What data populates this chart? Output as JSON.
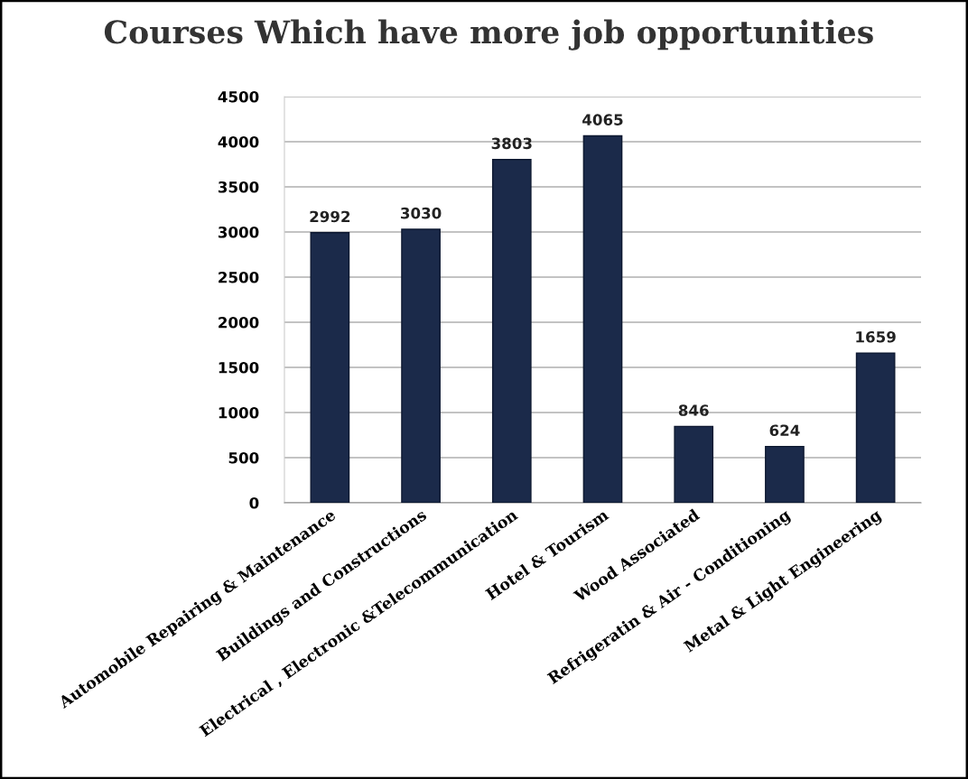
{
  "chart_data": {
    "type": "bar",
    "title": "Courses Which have more job opportunities",
    "categories": [
      "Automobile Repairing & Maintenance",
      "Buildings and Constructions",
      "Electrical , Electronic &Telecommunication",
      "Hotel & Tourism",
      "Wood Associated",
      "Refrigeratin & Air - Conditioning",
      "Metal & Light Engineering"
    ],
    "values": [
      2992,
      3030,
      3803,
      4065,
      846,
      624,
      1659
    ],
    "color": "#1b2a4a",
    "ylim": [
      0,
      4500
    ],
    "yticks": [
      0,
      500,
      1000,
      1500,
      2000,
      2500,
      3000,
      3500,
      4000,
      4500
    ],
    "grid": "y",
    "data_labels": true
  }
}
